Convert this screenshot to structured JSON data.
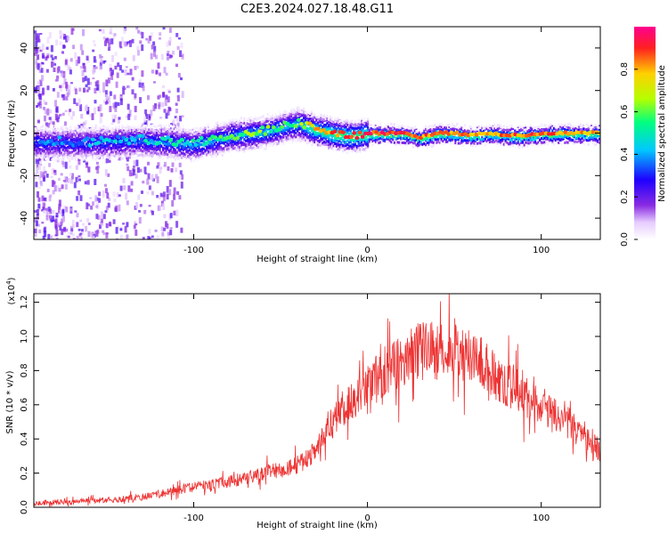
{
  "title": "C2E3.2024.027.18.48.G11",
  "chart_data": [
    {
      "type": "heatmap",
      "xlabel": "Height of straight line (km)",
      "ylabel": "Frequency (Hz)",
      "xlim": [
        -192,
        134
      ],
      "ylim": [
        -50,
        50
      ],
      "xticks": [
        -100,
        0,
        100
      ],
      "yticks": [
        -40,
        -20,
        0,
        20,
        40
      ],
      "colorbar": {
        "label": "Normalized spectral amplitude",
        "range": [
          0,
          1
        ],
        "ticks": [
          "0.0",
          "0.2",
          "0.4",
          "0.6",
          "0.8"
        ],
        "colors": [
          "#ffffff",
          "#e6ccff",
          "#8a2be2",
          "#1e00ff",
          "#00c8ff",
          "#00ff80",
          "#b4ff00",
          "#ffd000",
          "#ff2020",
          "#ff0090"
        ]
      },
      "ridge": {
        "x": [
          -190,
          -160,
          -130,
          -110,
          -100,
          -90,
          -80,
          -70,
          -60,
          -50,
          -40,
          -30,
          -20,
          -10,
          0,
          10,
          20,
          30,
          40,
          50,
          60,
          70,
          80,
          90,
          100,
          110,
          120,
          134
        ],
        "freq": [
          -4,
          -4,
          -3,
          -4,
          -5,
          -3,
          -1,
          0,
          1,
          3,
          5,
          2,
          0,
          -1,
          0,
          0,
          0,
          -2,
          0,
          0,
          -1,
          0,
          -1,
          -1,
          0,
          0,
          0,
          0
        ],
        "amplitude": [
          0.35,
          0.4,
          0.45,
          0.5,
          0.5,
          0.55,
          0.55,
          0.6,
          0.6,
          0.55,
          0.6,
          0.8,
          0.85,
          0.9,
          0.9,
          0.9,
          0.9,
          0.85,
          0.85,
          0.85,
          0.8,
          0.8,
          0.85,
          0.85,
          0.85,
          0.85,
          0.8,
          0.8
        ]
      }
    },
    {
      "type": "line",
      "xlabel": "Height of straight line (km)",
      "ylabel": "SNR (10 * v/v)",
      "y_multiplier": "(x10",
      "y_multiplier_exp": "4",
      "xlim": [
        -192,
        134
      ],
      "ylim": [
        0,
        1.25
      ],
      "xticks": [
        -100,
        0,
        100
      ],
      "yticks": [
        "0.0",
        "0.2",
        "0.4",
        "0.6",
        "0.8",
        "1.0",
        "1.2"
      ],
      "series": [
        {
          "color": "#ee3333",
          "x": [
            -192,
            -180,
            -170,
            -160,
            -150,
            -140,
            -130,
            -120,
            -110,
            -100,
            -90,
            -80,
            -70,
            -60,
            -50,
            -40,
            -30,
            -25,
            -20,
            -15,
            -10,
            -5,
            0,
            5,
            10,
            15,
            20,
            25,
            30,
            35,
            40,
            45,
            50,
            55,
            60,
            65,
            70,
            75,
            80,
            85,
            90,
            95,
            100,
            105,
            110,
            115,
            120,
            125,
            130,
            134
          ],
          "y": [
            0.02,
            0.03,
            0.03,
            0.04,
            0.04,
            0.05,
            0.06,
            0.08,
            0.1,
            0.12,
            0.13,
            0.15,
            0.17,
            0.2,
            0.22,
            0.25,
            0.32,
            0.45,
            0.5,
            0.58,
            0.62,
            0.65,
            0.72,
            0.75,
            0.8,
            0.82,
            0.85,
            0.88,
            0.92,
            0.95,
            0.9,
            0.92,
            0.95,
            0.88,
            0.9,
            0.85,
            0.8,
            0.75,
            0.72,
            0.7,
            0.65,
            0.62,
            0.58,
            0.55,
            0.52,
            0.5,
            0.45,
            0.42,
            0.38,
            0.33
          ]
        }
      ]
    }
  ]
}
